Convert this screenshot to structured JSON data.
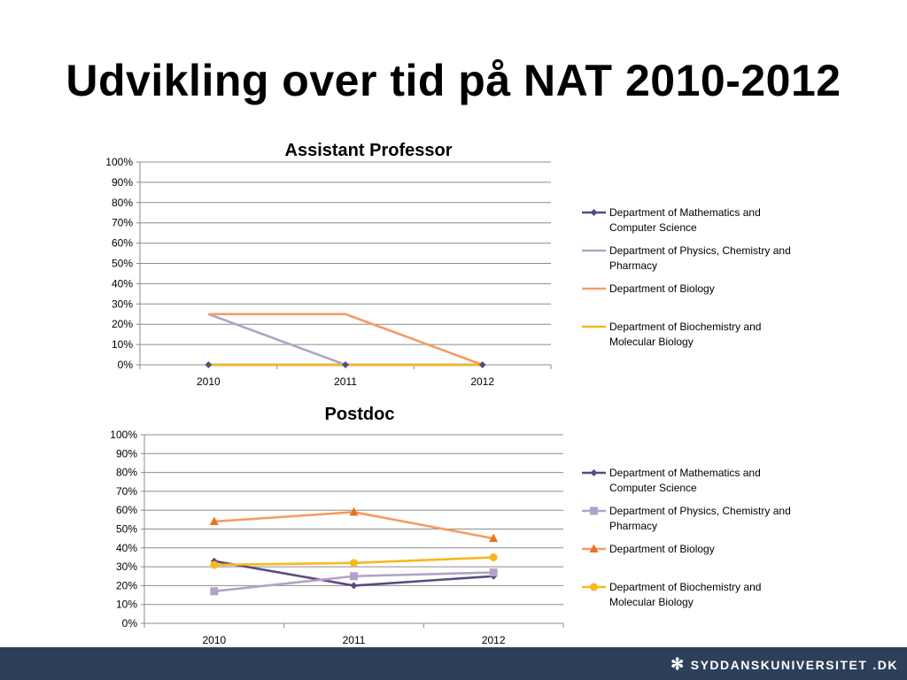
{
  "slide": {
    "title": "Udvikling over tid på NAT 2010-2012",
    "footer_logo_main": "SYDDANSKUNIVERSITET",
    "footer_logo_suffix": ".DK"
  },
  "colors": {
    "math": "#5b4a7e",
    "physics": "#b3a2c7",
    "biology": "#f79a63",
    "biochem": "#f6b91b",
    "biology_marker": "#e8731e",
    "footer": "#2d4059"
  },
  "chart_data": [
    {
      "type": "line",
      "title": "Assistant Professor",
      "categories": [
        "2010",
        "2011",
        "2012"
      ],
      "y_ticks": [
        "0%",
        "10%",
        "20%",
        "30%",
        "40%",
        "50%",
        "60%",
        "70%",
        "80%",
        "90%",
        "100%"
      ],
      "ylim": [
        0,
        100
      ],
      "grid": true,
      "legend_position": "right",
      "series": [
        {
          "name": "Department of Mathematics and Computer Science",
          "values": [
            0,
            0,
            0
          ],
          "color": "#5b4a7e",
          "marker": "diamond"
        },
        {
          "name": "Department of Physics, Chemistry and Pharmacy",
          "values": [
            25,
            0,
            0
          ],
          "color": "#b3a2c7",
          "marker": "none"
        },
        {
          "name": "Department of Biology",
          "values": [
            25,
            25,
            0
          ],
          "color": "#f79a63",
          "marker": "none"
        },
        {
          "name": "Department of Biochemistry and Molecular Biology",
          "values": [
            0,
            0,
            0
          ],
          "color": "#f6b91b",
          "marker": "none"
        }
      ]
    },
    {
      "type": "line",
      "title": "Postdoc",
      "categories": [
        "2010",
        "2011",
        "2012"
      ],
      "y_ticks": [
        "0%",
        "10%",
        "20%",
        "30%",
        "40%",
        "50%",
        "60%",
        "70%",
        "80%",
        "90%",
        "100%"
      ],
      "ylim": [
        0,
        100
      ],
      "grid": true,
      "legend_position": "right",
      "series": [
        {
          "name": "Department of Mathematics and Computer Science",
          "values": [
            33,
            20,
            25
          ],
          "color": "#5b4a7e",
          "marker": "diamond"
        },
        {
          "name": "Department of Physics, Chemistry and Pharmacy",
          "values": [
            17,
            25,
            27
          ],
          "color": "#b3a2c7",
          "marker": "square"
        },
        {
          "name": "Department of Biology",
          "values": [
            54,
            59,
            45
          ],
          "color": "#f79a63",
          "marker": "triangle"
        },
        {
          "name": "Department of Biochemistry and Molecular Biology",
          "values": [
            31,
            32,
            35
          ],
          "color": "#f6b91b",
          "marker": "circle"
        }
      ]
    }
  ]
}
